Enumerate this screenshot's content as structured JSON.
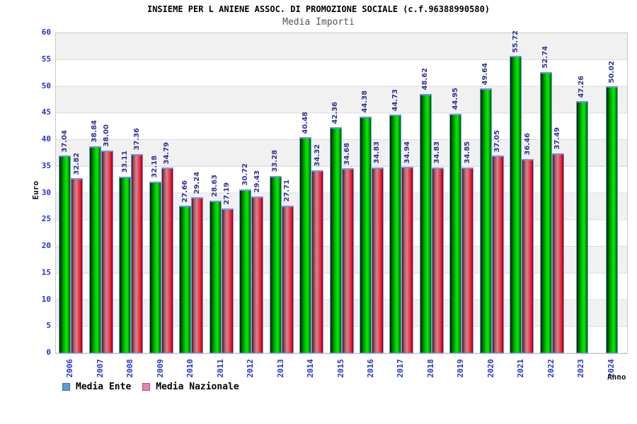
{
  "title": "INSIEME PER L ANIENE ASSOC. DI PROMOZIONE SOCIALE (c.f.96388990580)",
  "subtitle": "Media Importi",
  "y_axis_label": "Euro",
  "x_axis_label": "Anno",
  "legend": [
    {
      "label": "Media Ente",
      "swatch_color": "#5b9bd5"
    },
    {
      "label": "Media Nazionale",
      "swatch_color": "#f07eb0"
    }
  ],
  "colors": {
    "ente_bar": "#00cc00",
    "nazionale_bar": "#ee3344",
    "bar_border": "#7296e8",
    "axis_tick_text": "#2233cc",
    "value_label_text": "#333399",
    "band_gray": "#f1f1f1",
    "gridline": "#dcdcdc",
    "subtitle_text": "#555555"
  },
  "chart_data": {
    "type": "bar",
    "title": "INSIEME PER L ANIENE ASSOC. DI PROMOZIONE SOCIALE (c.f.96388990580)",
    "subtitle": "Media Importi",
    "xlabel": "Anno",
    "ylabel": "Euro",
    "ylim": [
      0,
      60
    ],
    "ytick_step": 5,
    "grid": true,
    "background_bands": "alternating white / light gray every 5 units",
    "legend_position": "bottom-left",
    "value_labels": "rotated 90deg above each bar, two decimals",
    "categories": [
      "2006",
      "2007",
      "2008",
      "2009",
      "2010",
      "2011",
      "2012",
      "2013",
      "2014",
      "2015",
      "2016",
      "2017",
      "2018",
      "2019",
      "2020",
      "2021",
      "2022",
      "2023",
      "2024"
    ],
    "series": [
      {
        "name": "Media Ente",
        "bar_color": "green gradient",
        "values": [
          37.04,
          38.84,
          33.11,
          32.18,
          27.66,
          28.63,
          30.72,
          33.28,
          40.48,
          42.36,
          44.38,
          44.73,
          48.62,
          44.95,
          49.64,
          55.72,
          52.74,
          47.26,
          50.02
        ]
      },
      {
        "name": "Media Nazionale",
        "bar_color": "red-pink gradient",
        "values": [
          32.82,
          38.0,
          37.36,
          34.79,
          29.24,
          27.19,
          29.43,
          27.71,
          34.32,
          34.68,
          34.83,
          34.94,
          34.83,
          34.85,
          37.05,
          36.46,
          37.49,
          null,
          null
        ]
      }
    ]
  }
}
